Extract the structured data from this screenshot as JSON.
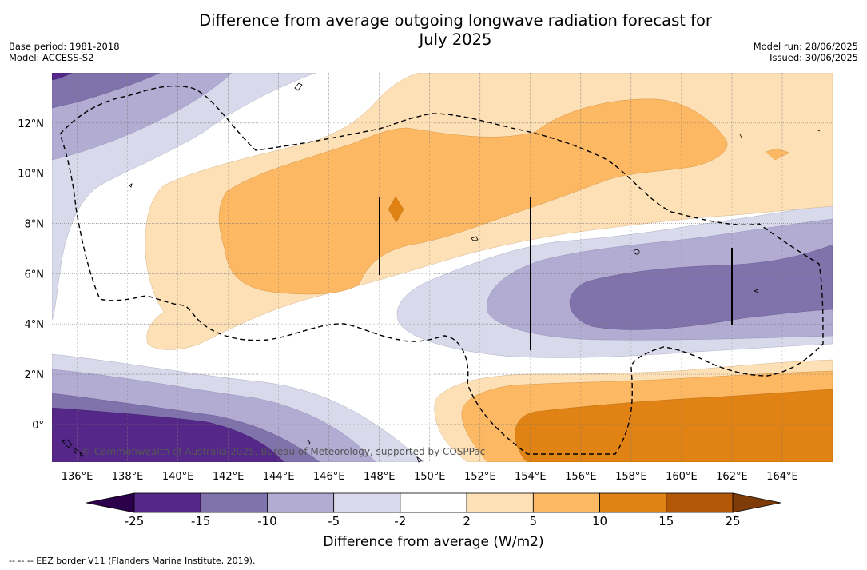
{
  "title_line1": "Difference from average outgoing longwave radiation forecast for",
  "title_line2": "July 2025",
  "base_period": "Base period: 1981-2018",
  "model": "Model: ACCESS-S2",
  "model_run": "Model run: 28/06/2025",
  "issued": "Issued: 30/06/2025",
  "copyright": "© Commonwealth of Australia 2025, Bureau of Meteorology, supported by COSPPac",
  "footnote": "-- -- -- EEZ border V11 (Flanders Marine Institute, 2019).",
  "map": {
    "lon_range": [
      135,
      166
    ],
    "lat_range": [
      -1.5,
      14
    ],
    "lon_ticks": [
      {
        "value": 136,
        "label": "136°E"
      },
      {
        "value": 138,
        "label": "138°E"
      },
      {
        "value": 140,
        "label": "140°E"
      },
      {
        "value": 142,
        "label": "142°E"
      },
      {
        "value": 144,
        "label": "144°E"
      },
      {
        "value": 146,
        "label": "146°E"
      },
      {
        "value": 148,
        "label": "148°E"
      },
      {
        "value": 150,
        "label": "150°E"
      },
      {
        "value": 152,
        "label": "152°E"
      },
      {
        "value": 154,
        "label": "154°E"
      },
      {
        "value": 156,
        "label": "156°E"
      },
      {
        "value": 158,
        "label": "158°E"
      },
      {
        "value": 160,
        "label": "160°E"
      },
      {
        "value": 162,
        "label": "162°E"
      },
      {
        "value": 164,
        "label": "164°E"
      }
    ],
    "lat_ticks": [
      {
        "value": 0,
        "label": "0°"
      },
      {
        "value": 2,
        "label": "2°N"
      },
      {
        "value": 4,
        "label": "4°N"
      },
      {
        "value": 6,
        "label": "6°N"
      },
      {
        "value": 8,
        "label": "8°N"
      },
      {
        "value": 10,
        "label": "10°N"
      },
      {
        "value": 12,
        "label": "12°N"
      }
    ]
  },
  "colorbar": {
    "title": "Difference from average (W/m2)",
    "under_color": "#2d004b",
    "over_color": "#7f3b08",
    "colors": [
      "#542788",
      "#8073ac",
      "#b2abd2",
      "#d8daeb",
      "#ffffff",
      "#fee0b6",
      "#fdb863",
      "#e08214",
      "#b35806"
    ],
    "tick_labels": [
      "-25",
      "-15",
      "-10",
      "-5",
      "-2",
      "2",
      "5",
      "10",
      "15",
      "25"
    ]
  }
}
